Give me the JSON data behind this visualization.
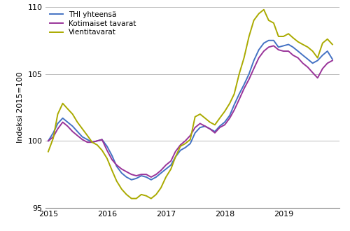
{
  "title": "",
  "ylabel": "Indeksi 2015=100",
  "ylim": [
    95,
    110
  ],
  "yticks": [
    95,
    100,
    105,
    110
  ],
  "line_colors": [
    "#4472C4",
    "#993399",
    "#AAAA00"
  ],
  "line_labels": [
    "THI yhteensä",
    "Kotimaiset tavarat",
    "Vientitavarat"
  ],
  "line_width": 1.4,
  "grid_color": "#BBBBBB",
  "background_color": "#FFFFFF",
  "thi_total": [
    100.0,
    100.6,
    101.3,
    101.7,
    101.4,
    101.1,
    100.7,
    100.3,
    100.1,
    99.9,
    100.0,
    100.1,
    99.6,
    98.9,
    98.1,
    97.6,
    97.3,
    97.1,
    97.2,
    97.4,
    97.3,
    97.1,
    97.3,
    97.6,
    97.9,
    98.2,
    98.8,
    99.3,
    99.5,
    99.8,
    100.6,
    101.0,
    101.1,
    100.9,
    100.7,
    101.1,
    101.4,
    101.9,
    102.7,
    103.5,
    104.2,
    105.0,
    106.0,
    106.8,
    107.3,
    107.5,
    107.5,
    107.0,
    107.1,
    107.2,
    107.0,
    106.7,
    106.4,
    106.1,
    105.8,
    106.0,
    106.4,
    106.7,
    106.1
  ],
  "kotimaiset": [
    100.0,
    100.3,
    100.9,
    101.4,
    101.1,
    100.7,
    100.4,
    100.1,
    99.9,
    99.9,
    100.0,
    100.1,
    99.3,
    98.6,
    98.2,
    97.9,
    97.7,
    97.5,
    97.4,
    97.5,
    97.5,
    97.3,
    97.5,
    97.8,
    98.2,
    98.5,
    99.2,
    99.7,
    100.0,
    100.4,
    101.0,
    101.3,
    101.1,
    100.9,
    100.6,
    101.0,
    101.2,
    101.7,
    102.3,
    103.1,
    103.9,
    104.6,
    105.4,
    106.2,
    106.7,
    107.0,
    107.1,
    106.8,
    106.7,
    106.7,
    106.4,
    106.2,
    105.8,
    105.5,
    105.1,
    104.7,
    105.4,
    105.8,
    106.0
  ],
  "vientitavarat": [
    99.2,
    100.2,
    102.0,
    102.8,
    102.4,
    102.0,
    101.4,
    100.9,
    100.4,
    99.9,
    99.7,
    99.3,
    98.7,
    97.8,
    97.0,
    96.4,
    96.0,
    95.7,
    95.7,
    96.0,
    95.9,
    95.7,
    96.0,
    96.5,
    97.3,
    97.9,
    98.8,
    99.6,
    99.8,
    100.1,
    101.8,
    102.0,
    101.7,
    101.4,
    101.2,
    101.7,
    102.2,
    102.8,
    103.5,
    105.0,
    106.2,
    107.8,
    109.0,
    109.5,
    109.8,
    109.0,
    108.8,
    107.8,
    107.8,
    108.0,
    107.7,
    107.4,
    107.2,
    107.0,
    106.7,
    106.2,
    107.3,
    107.6,
    107.2
  ]
}
